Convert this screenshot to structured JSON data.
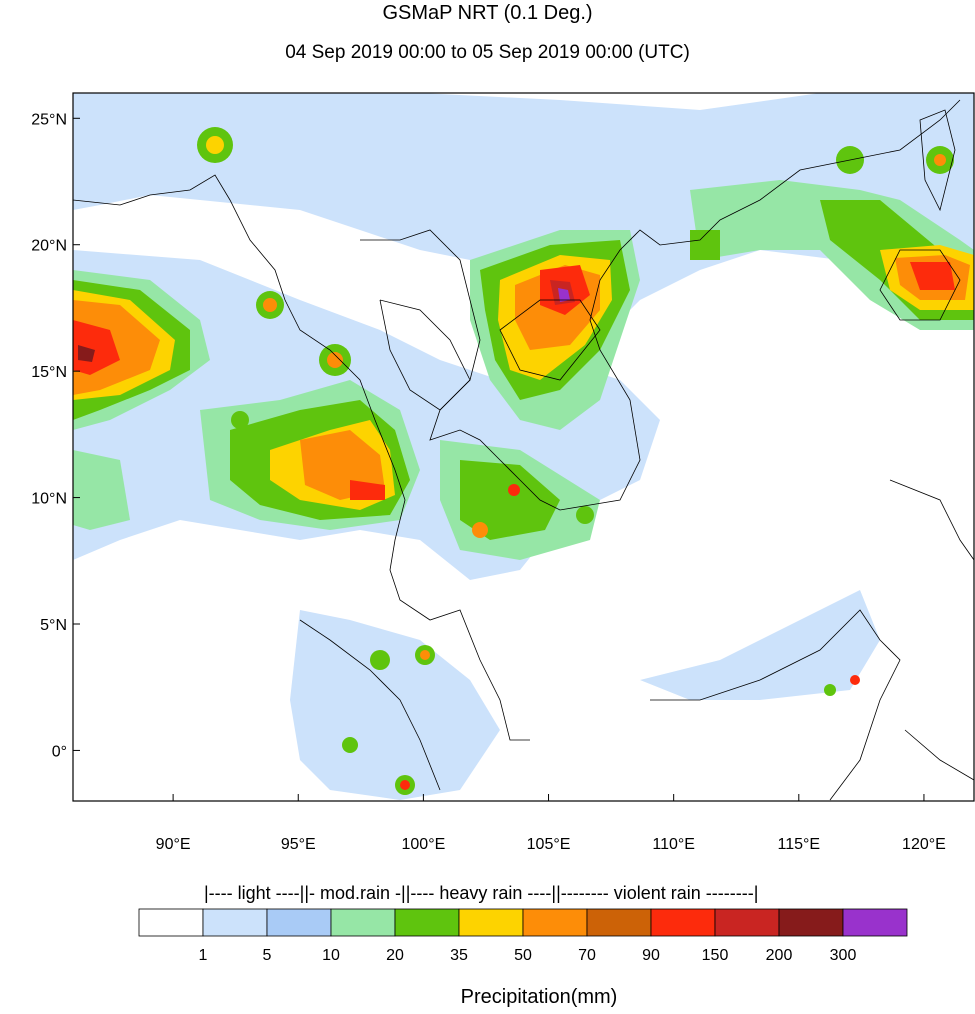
{
  "title": "GSMaP NRT (0.1 Deg.)",
  "subtitle": "04 Sep 2019 00:00 to 05 Sep 2019 00:00 (UTC)",
  "map": {
    "lon_range": [
      86,
      122
    ],
    "lat_range": [
      -2,
      26
    ],
    "lat_ticks": [
      {
        "value": 25,
        "label": "25°N"
      },
      {
        "value": 20,
        "label": "20°N"
      },
      {
        "value": 15,
        "label": "15°N"
      },
      {
        "value": 10,
        "label": "10°N"
      },
      {
        "value": 5,
        "label": "5°N"
      },
      {
        "value": 0,
        "label": "0°"
      }
    ],
    "lon_ticks": [
      {
        "value": 90,
        "label": "90°E"
      },
      {
        "value": 95,
        "label": "95°E"
      },
      {
        "value": 100,
        "label": "100°E"
      },
      {
        "value": 105,
        "label": "105°E"
      },
      {
        "value": 110,
        "label": "110°E"
      },
      {
        "value": 115,
        "label": "115°E"
      },
      {
        "value": 120,
        "label": "120°E"
      }
    ]
  },
  "legend": {
    "categories": {
      "light": "|---- light ----|",
      "moderate": "|- mod.rain -|",
      "heavy": "|---- heavy rain ----|",
      "violent": "|-------- violent rain --------|"
    },
    "colors": [
      "#ffffff",
      "#cce2fb",
      "#a9cbf6",
      "#96e6a6",
      "#5fc40e",
      "#fdd300",
      "#fd8d08",
      "#cc6207",
      "#fd2b0c",
      "#c92522",
      "#861b1b",
      "#9932cc"
    ],
    "thresholds": [
      "1",
      "5",
      "10",
      "20",
      "35",
      "50",
      "70",
      "90",
      "150",
      "200",
      "300"
    ],
    "unit": "Precipitation(mm)"
  }
}
